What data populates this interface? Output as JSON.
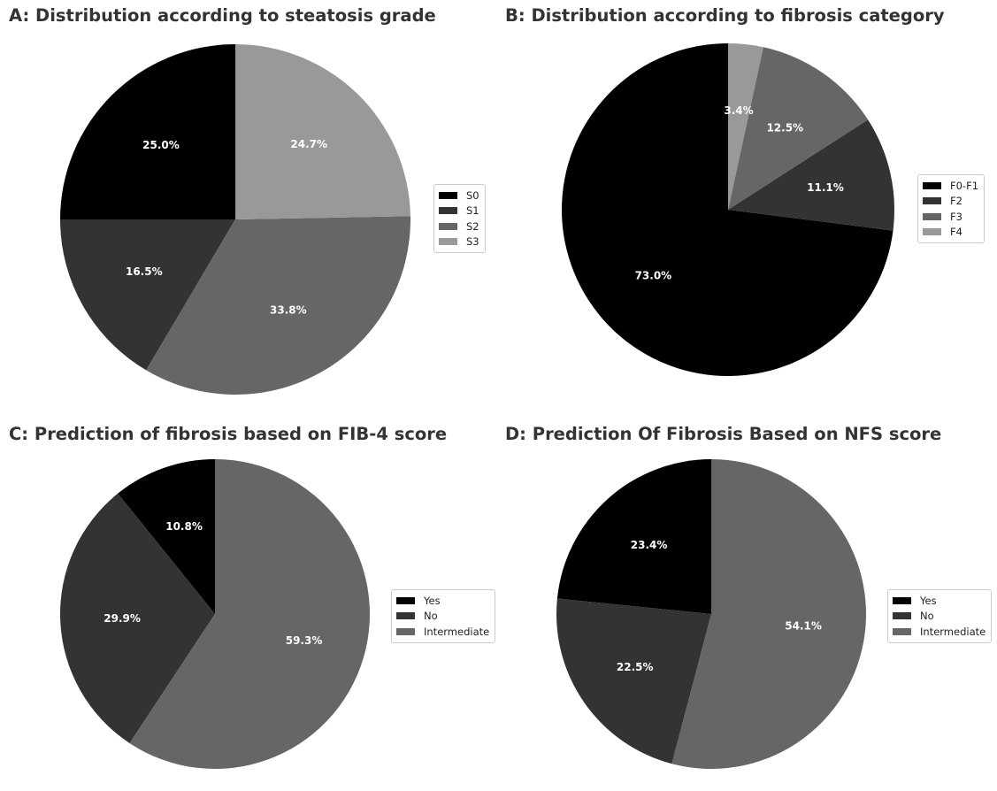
{
  "chart_data": [
    {
      "type": "pie",
      "title": "A: Distribution according to steatosis grade",
      "labels": [
        "S0",
        "S1",
        "S2",
        "S3"
      ],
      "values": [
        25.0,
        16.5,
        33.8,
        24.7
      ],
      "data_labels": [
        "25.0%",
        "16.5%",
        "33.8%",
        "24.7%"
      ],
      "colors": [
        "#000000",
        "#333333",
        "#666666",
        "#999999"
      ],
      "start_angle": 90,
      "direction": "counterclockwise",
      "legend_position": "right"
    },
    {
      "type": "pie",
      "title": "B: Distribution according to fibrosis category",
      "labels": [
        "F0-F1",
        "F2",
        "F3",
        "F4"
      ],
      "values": [
        73.0,
        11.1,
        12.5,
        3.4
      ],
      "data_labels": [
        "73.0%",
        "11.1%",
        "12.5%",
        "3.4%"
      ],
      "colors": [
        "#000000",
        "#333333",
        "#666666",
        "#999999"
      ],
      "start_angle": 90,
      "direction": "counterclockwise",
      "legend_position": "right"
    },
    {
      "type": "pie",
      "title": "C: Prediction of fibrosis based on FIB-4 score",
      "labels": [
        "Yes",
        "No",
        "Intermediate"
      ],
      "values": [
        10.8,
        29.9,
        59.3
      ],
      "data_labels": [
        "10.8%",
        "29.9%",
        "59.3%"
      ],
      "colors": [
        "#000000",
        "#333333",
        "#666666"
      ],
      "start_angle": 90,
      "direction": "counterclockwise",
      "legend_position": "right"
    },
    {
      "type": "pie",
      "title": "D: Prediction Of Fibrosis Based on NFS score",
      "labels": [
        "Yes",
        "No",
        "Intermediate"
      ],
      "values": [
        23.4,
        22.5,
        54.1
      ],
      "data_labels": [
        "23.4%",
        "22.5%",
        "54.1%"
      ],
      "colors": [
        "#000000",
        "#333333",
        "#666666"
      ],
      "start_angle": 90,
      "direction": "counterclockwise",
      "legend_position": "right"
    }
  ]
}
